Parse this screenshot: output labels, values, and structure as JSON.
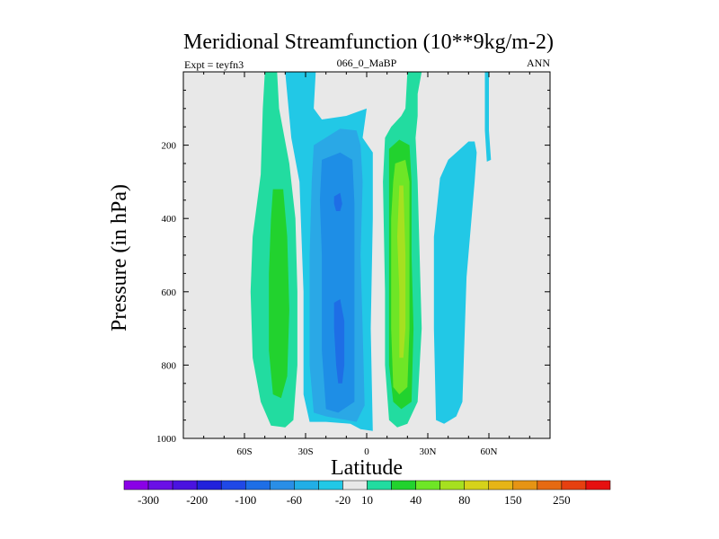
{
  "chart_data": {
    "type": "heatmap",
    "title": "Meridional Streamfunction (10**9kg/m-2)",
    "left_label": "Expt = teyfn3",
    "center_label": "066_0_MaBP",
    "right_label": "ANN",
    "xlabel": "Latitude",
    "ylabel": "Pressure (in hPa)",
    "xlim": [
      -90,
      90
    ],
    "ylim": [
      1000,
      0
    ],
    "x_ticks": [
      {
        "value": -60,
        "label": "60S"
      },
      {
        "value": -30,
        "label": "30S"
      },
      {
        "value": 0,
        "label": "0"
      },
      {
        "value": 30,
        "label": "30N"
      },
      {
        "value": 60,
        "label": "60N"
      }
    ],
    "y_ticks": [
      {
        "value": 200,
        "label": "200"
      },
      {
        "value": 400,
        "label": "400"
      },
      {
        "value": 600,
        "label": "600"
      },
      {
        "value": 800,
        "label": "800"
      },
      {
        "value": 1000,
        "label": "1000"
      }
    ],
    "colorbar": {
      "colors": [
        "#8a00e6",
        "#6a10e6",
        "#4a12e0",
        "#2222dc",
        "#2048e6",
        "#1e6ee6",
        "#2a8ee6",
        "#22aee6",
        "#22c8e6",
        "#e8e8e8",
        "#22dca0",
        "#22d22e",
        "#6ee626",
        "#a6e020",
        "#d6d21a",
        "#e6b416",
        "#e69414",
        "#e66a12",
        "#e64010",
        "#e61010"
      ],
      "labels": [
        {
          "after": 1,
          "text": "-300"
        },
        {
          "after": 3,
          "text": "-200"
        },
        {
          "after": 5,
          "text": "-100"
        },
        {
          "after": 7,
          "text": "-60"
        },
        {
          "after": 9,
          "text": "-20"
        },
        {
          "after": 10,
          "text": "10"
        },
        {
          "after": 12,
          "text": "40"
        },
        {
          "after": 14,
          "text": "80"
        },
        {
          "after": 16,
          "text": "150"
        },
        {
          "after": 18,
          "text": "250"
        }
      ]
    },
    "contour_regions": [
      {
        "name": "sh-ferrel-outer",
        "level": "10",
        "color": "#22dca0",
        "points": [
          [
            -50,
            0
          ],
          [
            -44,
            0
          ],
          [
            -43,
            100
          ],
          [
            -38,
            250
          ],
          [
            -35,
            400
          ],
          [
            -34,
            600
          ],
          [
            -34,
            800
          ],
          [
            -36,
            950
          ],
          [
            -40,
            970
          ],
          [
            -47,
            965
          ],
          [
            -52,
            900
          ],
          [
            -56,
            780
          ],
          [
            -57,
            600
          ],
          [
            -56,
            450
          ],
          [
            -52,
            280
          ],
          [
            -51,
            100
          ]
        ]
      },
      {
        "name": "sh-ferrel-core",
        "level": "40",
        "color": "#22d22e",
        "points": [
          [
            -46,
            320
          ],
          [
            -41,
            320
          ],
          [
            -39,
            450
          ],
          [
            -38,
            650
          ],
          [
            -39,
            830
          ],
          [
            -42,
            890
          ],
          [
            -46,
            880
          ],
          [
            -48,
            760
          ],
          [
            -48,
            550
          ],
          [
            -47,
            400
          ]
        ]
      },
      {
        "name": "sh-hadley-outer",
        "level": "-20",
        "color": "#22c8e6",
        "points": [
          [
            -40,
            0
          ],
          [
            -25,
            0
          ],
          [
            -26,
            100
          ],
          [
            -22,
            130
          ],
          [
            -10,
            120
          ],
          [
            0,
            100
          ],
          [
            -2,
            180
          ],
          [
            3,
            220
          ],
          [
            3,
            400
          ],
          [
            2,
            700
          ],
          [
            3,
            980
          ],
          [
            -3,
            975
          ],
          [
            -8,
            960
          ],
          [
            -20,
            955
          ],
          [
            -28,
            955
          ],
          [
            -31,
            880
          ],
          [
            -31,
            600
          ],
          [
            -33,
            300
          ],
          [
            -37,
            180
          ]
        ]
      },
      {
        "name": "sh-hadley-mid",
        "level": "-60",
        "color": "#2aa8e6",
        "points": [
          [
            -26,
            200
          ],
          [
            -13,
            155
          ],
          [
            -5,
            160
          ],
          [
            -3,
            200
          ],
          [
            -2,
            300
          ],
          [
            -3,
            500
          ],
          [
            -2,
            700
          ],
          [
            -1,
            910
          ],
          [
            -5,
            955
          ],
          [
            -20,
            940
          ],
          [
            -26,
            930
          ],
          [
            -28,
            800
          ],
          [
            -28,
            500
          ],
          [
            -27,
            300
          ]
        ]
      },
      {
        "name": "sh-hadley-inner",
        "level": "-100",
        "color": "#1e8ee6",
        "points": [
          [
            -22,
            240
          ],
          [
            -13,
            220
          ],
          [
            -7,
            240
          ],
          [
            -6,
            360
          ],
          [
            -6,
            600
          ],
          [
            -6,
            760
          ],
          [
            -6,
            900
          ],
          [
            -14,
            930
          ],
          [
            -20,
            920
          ],
          [
            -22,
            760
          ],
          [
            -22,
            500
          ],
          [
            -23,
            350
          ]
        ]
      },
      {
        "name": "sh-hadley-core-upper",
        "level": "-200",
        "color": "#1e6ee6",
        "points": [
          [
            -16,
            340
          ],
          [
            -13,
            330
          ],
          [
            -12,
            360
          ],
          [
            -13,
            380
          ],
          [
            -15,
            380
          ],
          [
            -16,
            360
          ]
        ]
      },
      {
        "name": "sh-hadley-core-lower",
        "level": "-200",
        "color": "#1e6ee6",
        "points": [
          [
            -16,
            630
          ],
          [
            -13,
            620
          ],
          [
            -11,
            680
          ],
          [
            -11,
            800
          ],
          [
            -12,
            850
          ],
          [
            -14,
            850
          ],
          [
            -15,
            800
          ],
          [
            -16,
            700
          ]
        ]
      },
      {
        "name": "nh-hadley-outer",
        "level": "10",
        "color": "#22dca0",
        "points": [
          [
            9,
            180
          ],
          [
            12,
            150
          ],
          [
            17,
            120
          ],
          [
            19,
            100
          ],
          [
            20,
            0
          ],
          [
            27,
            0
          ],
          [
            25,
            60
          ],
          [
            25,
            120
          ],
          [
            24,
            180
          ],
          [
            25,
            300
          ],
          [
            26,
            500
          ],
          [
            27,
            700
          ],
          [
            25,
            900
          ],
          [
            20,
            960
          ],
          [
            15,
            970
          ],
          [
            11,
            950
          ],
          [
            9,
            800
          ],
          [
            9,
            600
          ],
          [
            8,
            300
          ]
        ]
      },
      {
        "name": "nh-hadley-mid",
        "level": "40",
        "color": "#22d22e",
        "points": [
          [
            11,
            210
          ],
          [
            16,
            185
          ],
          [
            21,
            200
          ],
          [
            22,
            300
          ],
          [
            22,
            500
          ],
          [
            23,
            700
          ],
          [
            22,
            900
          ],
          [
            17,
            920
          ],
          [
            13,
            900
          ],
          [
            11,
            800
          ],
          [
            11,
            500
          ],
          [
            11,
            300
          ]
        ]
      },
      {
        "name": "nh-hadley-inner",
        "level": "80",
        "color": "#6ee626",
        "points": [
          [
            14,
            250
          ],
          [
            19,
            240
          ],
          [
            21,
            300
          ],
          [
            21,
            700
          ],
          [
            20,
            860
          ],
          [
            16,
            880
          ],
          [
            13,
            860
          ],
          [
            12,
            700
          ],
          [
            12,
            400
          ],
          [
            13,
            300
          ]
        ]
      },
      {
        "name": "nh-hadley-core",
        "level": "80",
        "color": "#a6e020",
        "points": [
          [
            16,
            310
          ],
          [
            18,
            310
          ],
          [
            19,
            500
          ],
          [
            19,
            700
          ],
          [
            18,
            780
          ],
          [
            16,
            780
          ],
          [
            16,
            600
          ],
          [
            15,
            450
          ]
        ]
      },
      {
        "name": "nh-ferrel-outer",
        "level": "-20",
        "color": "#22c8e6",
        "points": [
          [
            36,
            290
          ],
          [
            40,
            240
          ],
          [
            45,
            215
          ],
          [
            50,
            190
          ],
          [
            53,
            190
          ],
          [
            54,
            220
          ],
          [
            53,
            300
          ],
          [
            49,
            560
          ],
          [
            47,
            900
          ],
          [
            44,
            940
          ],
          [
            38,
            960
          ],
          [
            34,
            950
          ],
          [
            33,
            700
          ],
          [
            33,
            450
          ]
        ]
      },
      {
        "name": "nh-upper-strip",
        "level": "-20",
        "color": "#22c8e6",
        "points": [
          [
            58,
            0
          ],
          [
            60,
            0
          ],
          [
            60,
            100
          ],
          [
            60,
            160
          ],
          [
            61,
            240
          ],
          [
            59,
            245
          ],
          [
            58,
            160
          ],
          [
            58,
            100
          ]
        ]
      }
    ]
  }
}
